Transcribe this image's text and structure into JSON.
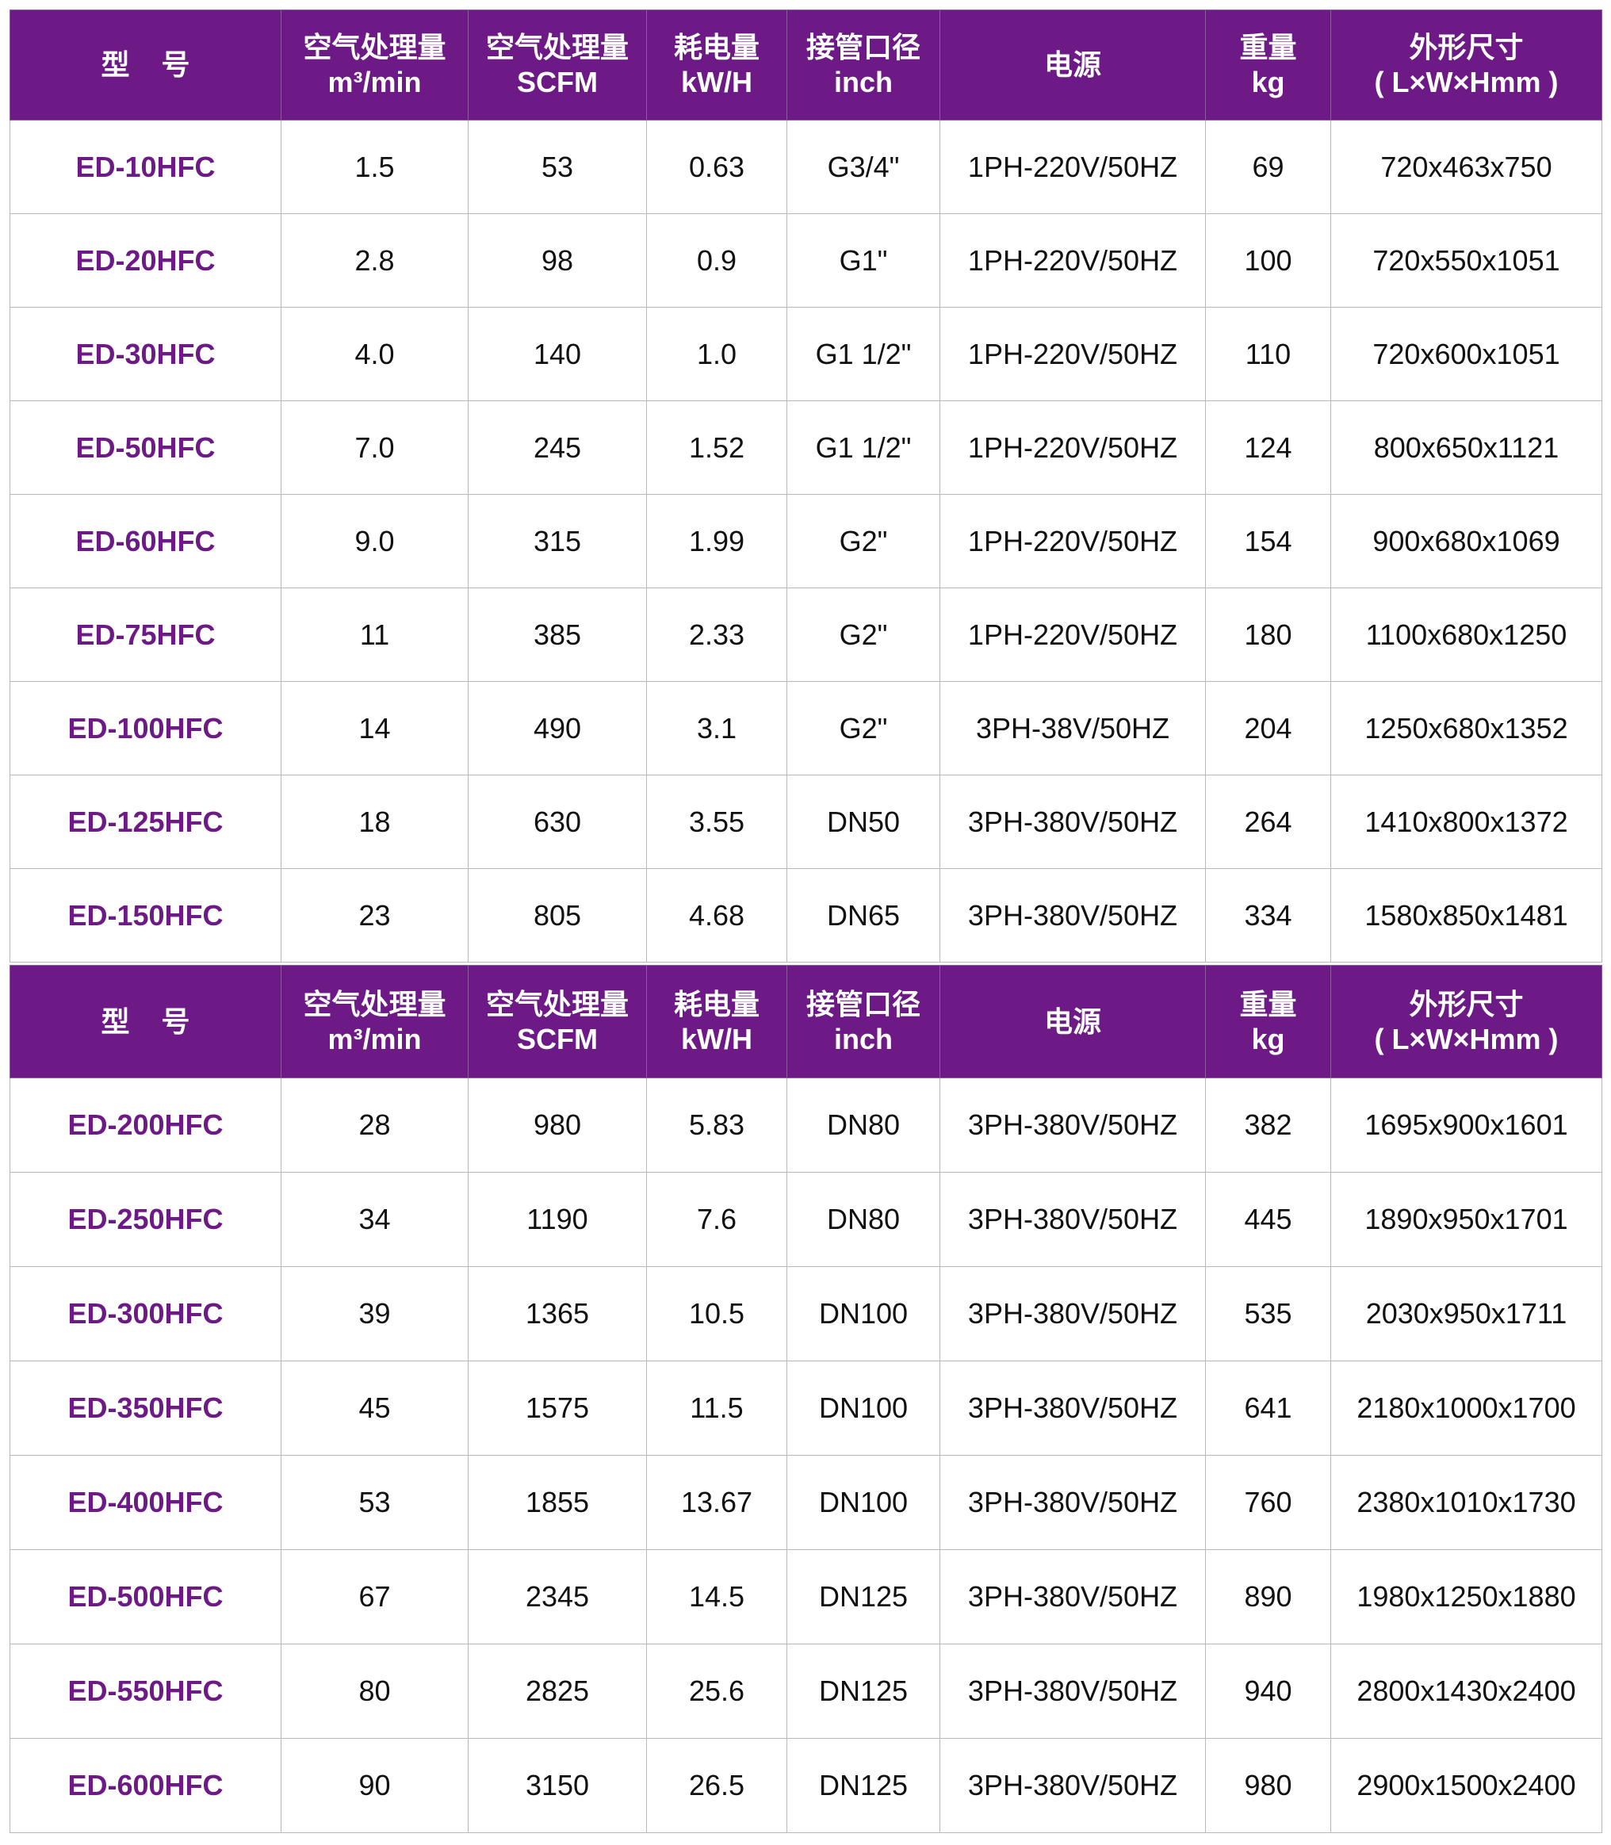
{
  "headers": [
    {
      "line1": "型号",
      "line2": ""
    },
    {
      "line1": "空气处理量",
      "line2": "m³/min"
    },
    {
      "line1": "空气处理量",
      "line2": "SCFM"
    },
    {
      "line1": "耗电量",
      "line2": "kW/H"
    },
    {
      "line1": "接管口径",
      "line2": "inch"
    },
    {
      "line1": "电源",
      "line2": ""
    },
    {
      "line1": "重量",
      "line2": "kg"
    },
    {
      "line1": "外形尺寸",
      "line2": "( L×W×Hmm )"
    }
  ],
  "colors": {
    "header_bg": "#6d1a87",
    "model_text": "#6d1a87"
  },
  "table1": [
    [
      "ED-10HFC",
      "1.5",
      "53",
      "0.63",
      "G3/4\"",
      "1PH-220V/50HZ",
      "69",
      "720x463x750"
    ],
    [
      "ED-20HFC",
      "2.8",
      "98",
      "0.9",
      "G1\"",
      "1PH-220V/50HZ",
      "100",
      "720x550x1051"
    ],
    [
      "ED-30HFC",
      "4.0",
      "140",
      "1.0",
      "G1 1/2\"",
      "1PH-220V/50HZ",
      "110",
      "720x600x1051"
    ],
    [
      "ED-50HFC",
      "7.0",
      "245",
      "1.52",
      "G1 1/2\"",
      "1PH-220V/50HZ",
      "124",
      "800x650x1121"
    ],
    [
      "ED-60HFC",
      "9.0",
      "315",
      "1.99",
      "G2\"",
      "1PH-220V/50HZ",
      "154",
      "900x680x1069"
    ],
    [
      "ED-75HFC",
      "11",
      "385",
      "2.33",
      "G2\"",
      "1PH-220V/50HZ",
      "180",
      "1100x680x1250"
    ],
    [
      "ED-100HFC",
      "14",
      "490",
      "3.1",
      "G2\"",
      "3PH-38V/50HZ",
      "204",
      "1250x680x1352"
    ],
    [
      "ED-125HFC",
      "18",
      "630",
      "3.55",
      "DN50",
      "3PH-380V/50HZ",
      "264",
      "1410x800x1372"
    ],
    [
      "ED-150HFC",
      "23",
      "805",
      "4.68",
      "DN65",
      "3PH-380V/50HZ",
      "334",
      "1580x850x1481"
    ]
  ],
  "table2": [
    [
      "ED-200HFC",
      "28",
      "980",
      "5.83",
      "DN80",
      "3PH-380V/50HZ",
      "382",
      "1695x900x1601"
    ],
    [
      "ED-250HFC",
      "34",
      "1190",
      "7.6",
      "DN80",
      "3PH-380V/50HZ",
      "445",
      "1890x950x1701"
    ],
    [
      "ED-300HFC",
      "39",
      "1365",
      "10.5",
      "DN100",
      "3PH-380V/50HZ",
      "535",
      "2030x950x1711"
    ],
    [
      "ED-350HFC",
      "45",
      "1575",
      "11.5",
      "DN100",
      "3PH-380V/50HZ",
      "641",
      "2180x1000x1700"
    ],
    [
      "ED-400HFC",
      "53",
      "1855",
      "13.67",
      "DN100",
      "3PH-380V/50HZ",
      "760",
      "2380x1010x1730"
    ],
    [
      "ED-500HFC",
      "67",
      "2345",
      "14.5",
      "DN125",
      "3PH-380V/50HZ",
      "890",
      "1980x1250x1880"
    ],
    [
      "ED-550HFC",
      "80",
      "2825",
      "25.6",
      "DN125",
      "3PH-380V/50HZ",
      "940",
      "2800x1430x2400"
    ],
    [
      "ED-600HFC",
      "90",
      "3150",
      "26.5",
      "DN125",
      "3PH-380V/50HZ",
      "980",
      "2900x1500x2400"
    ]
  ]
}
